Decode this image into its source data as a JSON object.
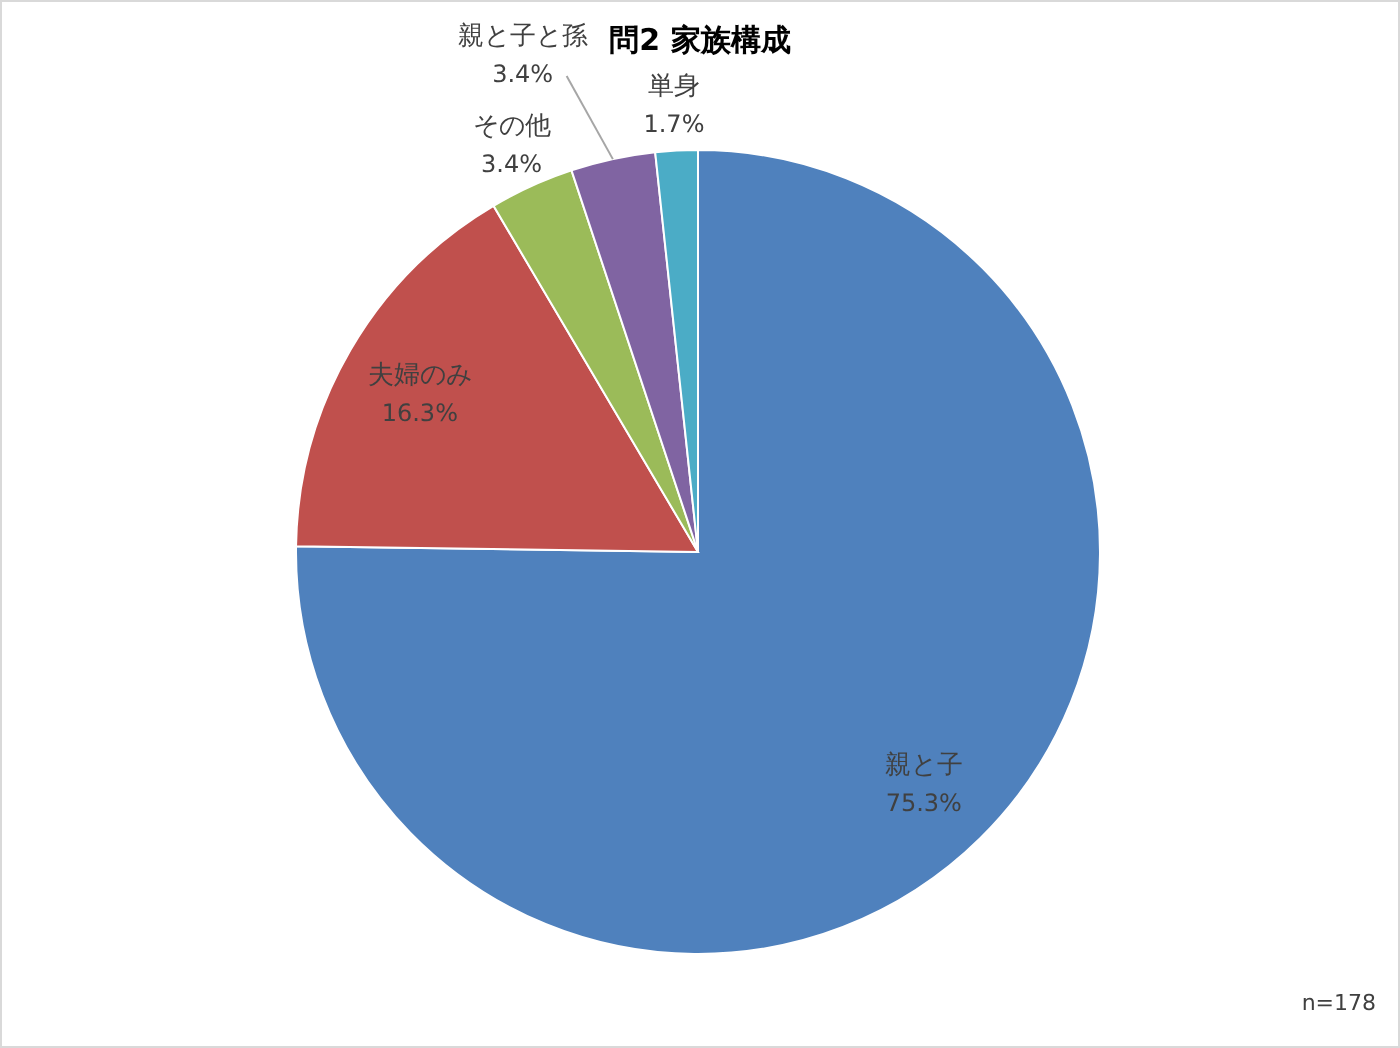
{
  "chart_data": {
    "type": "pie",
    "title": "問2 家族構成",
    "categories": [
      "親と子",
      "夫婦のみ",
      "その他",
      "親と子と孫",
      "単身"
    ],
    "values": [
      75.3,
      16.3,
      3.4,
      3.4,
      1.7
    ],
    "value_labels": [
      "75.3%",
      "16.3%",
      "3.4%",
      "3.4%",
      "1.7%"
    ],
    "colors": [
      "#4f81bd",
      "#c0504d",
      "#9bbb59",
      "#8064a2",
      "#4bacc6"
    ],
    "annotations": [
      "n=178"
    ]
  }
}
